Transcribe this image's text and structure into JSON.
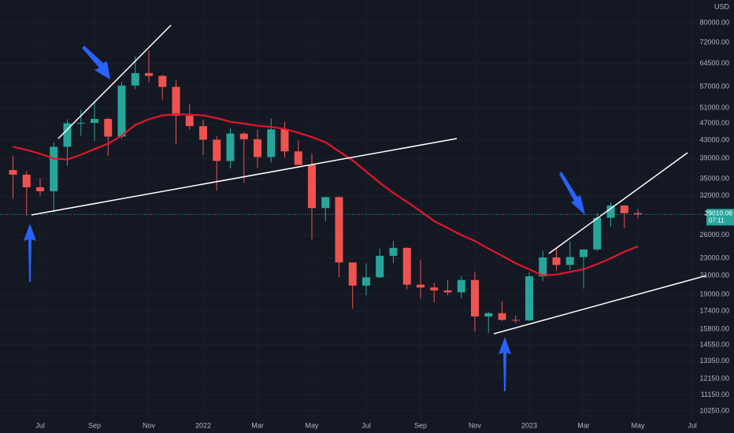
{
  "chart_data": {
    "type": "candlestick",
    "currency": "USD",
    "log_scale": true,
    "grid": true,
    "categories": [
      null,
      null,
      "Jul",
      null,
      null,
      null,
      "Sep",
      null,
      null,
      null,
      "Nov",
      null,
      null,
      null,
      "2022",
      null,
      null,
      null,
      "Mar",
      null,
      null,
      null,
      "May",
      null,
      null,
      null,
      "Jul",
      null,
      null,
      null,
      "Sep",
      null,
      null,
      null,
      "Nov",
      null,
      null,
      null,
      "2023",
      null,
      null,
      null,
      "Mar",
      null,
      null,
      null,
      "May",
      null,
      null,
      null,
      "Jul"
    ],
    "open": [
      36700,
      35800,
      33500,
      32800,
      41500,
      47000,
      47100,
      48100,
      43800,
      57400,
      61300,
      60400,
      57000,
      48900,
      46300,
      43100,
      38500,
      44500,
      43200,
      39300,
      45500,
      40500,
      37700,
      30000,
      31800,
      22500,
      19900,
      20800,
      23300,
      24300,
      20000,
      19700,
      19400,
      19200,
      20500,
      16900,
      17200,
      16600,
      16550,
      20900,
      23100,
      22200,
      23150,
      24100,
      28500,
      30400,
      29200,
      null,
      null,
      null,
      null
    ],
    "high": [
      39500,
      36500,
      35100,
      42500,
      48000,
      50500,
      52900,
      48500,
      58500,
      67000,
      69000,
      60700,
      59000,
      52000,
      47900,
      44000,
      45800,
      44800,
      45400,
      48200,
      47400,
      42900,
      40000,
      31400,
      31900,
      22500,
      22400,
      24200,
      25200,
      24400,
      22800,
      20200,
      20500,
      20900,
      21400,
      17300,
      18300,
      17000,
      21400,
      23900,
      24200,
      25200,
      24100,
      29200,
      30900,
      30500,
      29800,
      null,
      null,
      null,
      null
    ],
    "low": [
      31500,
      28800,
      32100,
      29300,
      37500,
      44000,
      42800,
      39600,
      43300,
      56300,
      58500,
      53300,
      42000,
      45500,
      39700,
      32900,
      37000,
      34300,
      37100,
      38200,
      39200,
      37700,
      25400,
      28000,
      20800,
      17600,
      18900,
      20700,
      22400,
      19500,
      18600,
      18200,
      18900,
      18600,
      15600,
      15500,
      16500,
      16300,
      16500,
      20400,
      21500,
      21600,
      19600,
      23900,
      27200,
      27000,
      28400,
      null,
      null,
      null,
      null
    ],
    "close": [
      35800,
      33500,
      32800,
      41500,
      47000,
      47100,
      48100,
      43800,
      57400,
      61300,
      60400,
      57000,
      48900,
      46300,
      43100,
      38500,
      44500,
      43200,
      39300,
      45500,
      40500,
      37700,
      30000,
      31800,
      22500,
      19900,
      20800,
      23300,
      24300,
      20000,
      19700,
      19400,
      19200,
      20500,
      16900,
      17200,
      16600,
      16550,
      20900,
      23100,
      22200,
      23150,
      24100,
      28500,
      30400,
      29200,
      29010.08,
      null,
      null,
      null,
      null
    ],
    "up_color": "#26a69a",
    "down_color": "#ef5350",
    "countdown": "07:11",
    "ma": {
      "color": "#e3162b",
      "values": [
        41500,
        40800,
        40000,
        39000,
        38800,
        39800,
        41000,
        42200,
        44000,
        46600,
        48000,
        49000,
        49300,
        49200,
        49000,
        48300,
        47400,
        46900,
        46400,
        46100,
        45600,
        44700,
        43700,
        42500,
        40500,
        38600,
        36400,
        34300,
        32500,
        31000,
        29500,
        28000,
        27000,
        26000,
        25200,
        24200,
        23300,
        22400,
        21700,
        21000,
        21100,
        21400,
        21700,
        22300,
        23000,
        23800,
        24500,
        null,
        null,
        null,
        null
      ]
    },
    "ylim": [
      9830,
      90270
    ],
    "yticks": [
      {
        "value": 80000,
        "label": "80000.00"
      },
      {
        "value": 72000,
        "label": "72000.00"
      },
      {
        "value": 64500,
        "label": "64500.00"
      },
      {
        "value": 57000,
        "label": "57000.00"
      },
      {
        "value": 51000,
        "label": "51000.00"
      },
      {
        "value": 47000,
        "label": "47000.00"
      },
      {
        "value": 43000,
        "label": "43000.00"
      },
      {
        "value": 39000,
        "label": "39000.00"
      },
      {
        "value": 35000,
        "label": "35000.00"
      },
      {
        "value": 32000,
        "label": "32000.00"
      },
      {
        "value": 26000,
        "label": "26000.00"
      },
      {
        "value": 23000,
        "label": "23000.00"
      },
      {
        "value": 21000,
        "label": "21000.00"
      },
      {
        "value": 19000,
        "label": "19000.00"
      },
      {
        "value": 17400,
        "label": "17400.00"
      },
      {
        "value": 15800,
        "label": "15800.00"
      },
      {
        "value": 14550,
        "label": "14550.00"
      },
      {
        "value": 13350,
        "label": "13350.00"
      },
      {
        "value": 12150,
        "label": "12150.00"
      },
      {
        "value": 11150,
        "label": "11150.00"
      },
      {
        "value": 10250,
        "label": "10250.00"
      }
    ]
  }
}
